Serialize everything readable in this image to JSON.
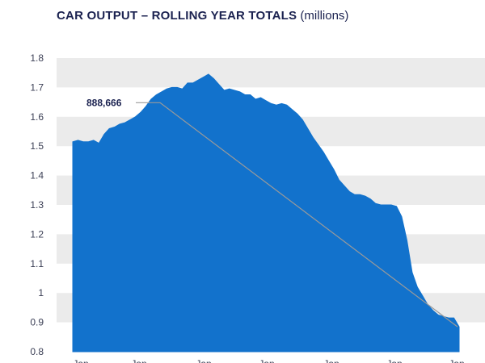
{
  "header": {
    "title": "CAR OUTPUT – ROLLING YEAR TOTALS",
    "unit": "(millions)"
  },
  "colors": {
    "area": "#1272cc",
    "band": "#ebebeb",
    "background": "#ffffff",
    "connector": "#9a9a9a",
    "title": "#1b2250"
  },
  "chart_data": {
    "type": "area",
    "title": "CAR OUTPUT – ROLLING YEAR TOTALS",
    "unit": "(millions)",
    "ylim": [
      0.8,
      1.8
    ],
    "yticks": [
      0.8,
      0.9,
      1,
      1.1,
      1.2,
      1.3,
      1.4,
      1.5,
      1.6,
      1.7,
      1.8
    ],
    "ytick_labels": [
      "0.8",
      "0.9",
      "1",
      "1.1",
      "1.2",
      "1.3",
      "1.4",
      "1.5",
      "1.6",
      "1.7",
      "1.8"
    ],
    "xtick_labels": [
      "Jan",
      "Jan",
      "Jan",
      "Jan",
      "Jan",
      "Jan",
      "Jan"
    ],
    "grid": "alternating horizontal bands",
    "series": [
      {
        "values": [
          1.515,
          1.52,
          1.515,
          1.515,
          1.52,
          1.51,
          1.54,
          1.56,
          1.565,
          1.575,
          1.58,
          1.59,
          1.6,
          1.615,
          1.635,
          1.66,
          1.675,
          1.685,
          1.695,
          1.7,
          1.7,
          1.695,
          1.715,
          1.715,
          1.725,
          1.735,
          1.745,
          1.73,
          1.71,
          1.69,
          1.695,
          1.69,
          1.685,
          1.675,
          1.675,
          1.66,
          1.665,
          1.655,
          1.645,
          1.64,
          1.645,
          1.64,
          1.625,
          1.61,
          1.59,
          1.56,
          1.53,
          1.505,
          1.48,
          1.45,
          1.42,
          1.385,
          1.365,
          1.345,
          1.335,
          1.335,
          1.33,
          1.32,
          1.305,
          1.3,
          1.3,
          1.3,
          1.295,
          1.26,
          1.18,
          1.07,
          1.02,
          0.99,
          0.96,
          0.94,
          0.925,
          0.92,
          0.915,
          0.915,
          0.885
        ]
      }
    ],
    "annotations": [
      {
        "text": "888,666",
        "from_value": 1.648,
        "to_value": 0.885
      }
    ]
  }
}
